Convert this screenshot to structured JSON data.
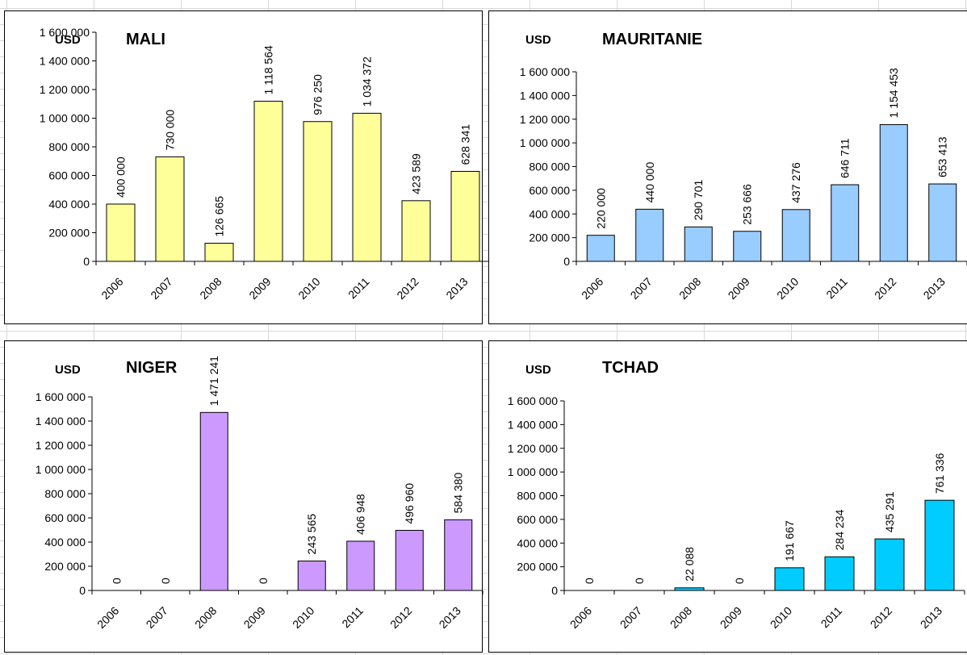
{
  "chart_data": [
    {
      "type": "bar",
      "title": "MALI",
      "unit_label": "USD",
      "categories": [
        "2006",
        "2007",
        "2008",
        "2009",
        "2010",
        "2011",
        "2012",
        "2013"
      ],
      "values": [
        400000,
        730000,
        126665,
        1118564,
        976250,
        1034372,
        423589,
        628341
      ],
      "data_labels": [
        "400 000",
        "730 000",
        "126 665",
        "1 118 564",
        "976 250",
        "1 034 372",
        "423 589",
        "628 341"
      ],
      "yticks": [
        "0",
        "200 000",
        "400 000",
        "600 000",
        "800 000",
        "1 000 000",
        "1 200 000",
        "1 400 000",
        "1 600 000"
      ],
      "ylim": [
        0,
        1600000
      ],
      "color": "#ffff99",
      "grid": false,
      "legend": "none"
    },
    {
      "type": "bar",
      "title": "MAURITANIE",
      "unit_label": "USD",
      "categories": [
        "2006",
        "2007",
        "2008",
        "2009",
        "2010",
        "2011",
        "2012",
        "2013"
      ],
      "values": [
        220000,
        440000,
        290701,
        253666,
        437276,
        646711,
        1154453,
        653413
      ],
      "data_labels": [
        "220 000",
        "440 000",
        "290 701",
        "253 666",
        "437 276",
        "646 711",
        "1 154 453",
        "653 413"
      ],
      "yticks": [
        "0",
        "200 000",
        "400 000",
        "600 000",
        "800 000",
        "1 000 000",
        "1 200 000",
        "1 400 000",
        "1 600 000"
      ],
      "ylim": [
        0,
        1600000
      ],
      "color": "#99ccff",
      "grid": false,
      "legend": "none"
    },
    {
      "type": "bar",
      "title": "NIGER",
      "unit_label": "USD",
      "categories": [
        "2006",
        "2007",
        "2008",
        "2009",
        "2010",
        "2011",
        "2012",
        "2013"
      ],
      "values": [
        0,
        0,
        1471241,
        0,
        243565,
        406948,
        496960,
        584380
      ],
      "data_labels": [
        "0",
        "0",
        "1 471 241",
        "0",
        "243 565",
        "406 948",
        "496 960",
        "584 380"
      ],
      "yticks": [
        "0",
        "200 000",
        "400 000",
        "600 000",
        "800 000",
        "1 000 000",
        "1 200 000",
        "1 400 000",
        "1 600 000"
      ],
      "ylim": [
        0,
        1600000
      ],
      "color": "#cc99ff",
      "grid": false,
      "legend": "none"
    },
    {
      "type": "bar",
      "title": "TCHAD",
      "unit_label": "USD",
      "categories": [
        "2006",
        "2007",
        "2008",
        "2009",
        "2010",
        "2011",
        "2012",
        "2013"
      ],
      "values": [
        0,
        0,
        22088,
        0,
        191667,
        284234,
        435291,
        761336
      ],
      "data_labels": [
        "0",
        "0",
        "22 088",
        "0",
        "191 667",
        "284 234",
        "435 291",
        "761 336"
      ],
      "yticks": [
        "0",
        "200 000",
        "400 000",
        "600 000",
        "800 000",
        "1 000 000",
        "1 200 000",
        "1 400 000",
        "1 600 000"
      ],
      "ylim": [
        0,
        1600000
      ],
      "color": "#00ccff",
      "grid": false,
      "legend": "none"
    }
  ]
}
